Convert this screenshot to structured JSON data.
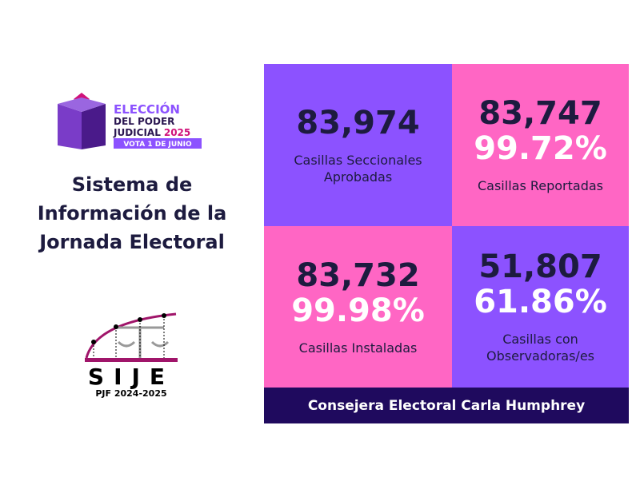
{
  "logo": {
    "line1": "ELECCIÓN",
    "line2": "DEL PODER",
    "line3": "JUDICIAL",
    "year": "2025",
    "tagline": "VOTA 1 DE JUNIO"
  },
  "title": "Sistema de Información de la Jornada Electoral",
  "sije": {
    "name": "SIJE",
    "subtitle": "PJF 2024-2025"
  },
  "stats": [
    {
      "number": "83,974",
      "label": "Casillas Seccionales Aprobadas"
    },
    {
      "number": "83,747",
      "percent": "99.72%",
      "label": "Casillas Reportadas"
    },
    {
      "number": "83,732",
      "percent": "99.98%",
      "label": "Casillas Instaladas"
    },
    {
      "number": "51,807",
      "percent": "61.86%",
      "label": "Casillas con Observadoras/es"
    }
  ],
  "footer": "Consejera Electoral Carla Humphrey",
  "colors": {
    "purple": "#8c52ff",
    "pink": "#ff66c4",
    "navy": "#1f0a5e"
  }
}
